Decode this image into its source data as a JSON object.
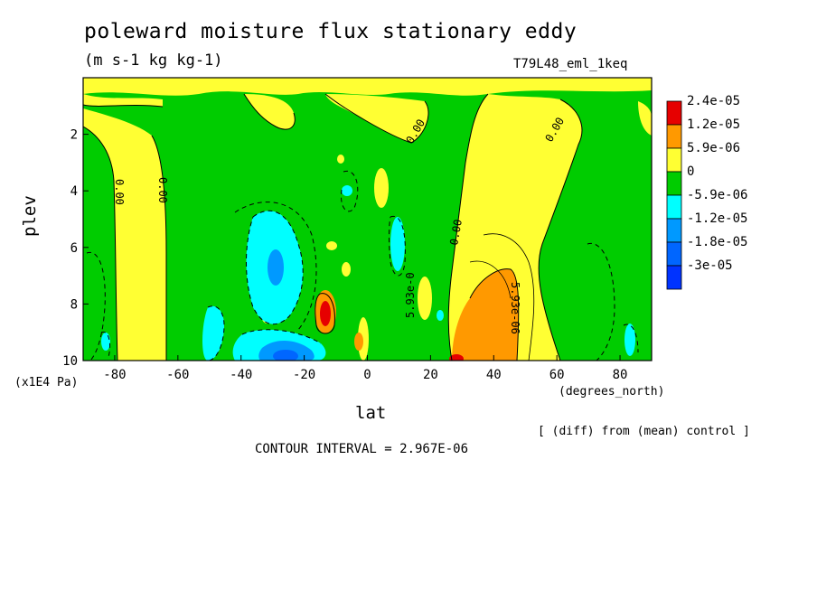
{
  "chart_data": {
    "type": "heatmap",
    "title": "poleward moisture flux stationary eddy",
    "units": "(m s-1 kg kg-1)",
    "experiment": "T79L48_eml_1keq",
    "xlabel": "lat",
    "x_units": "(degrees_north)",
    "ylabel": "plev",
    "y_units": "(x1E4 Pa)",
    "xlim": [
      -90,
      90
    ],
    "ylim": [
      0,
      10
    ],
    "y_inverted": true,
    "x_ticks": [
      "-80",
      "-60",
      "-40",
      "-20",
      "0",
      "20",
      "40",
      "60",
      "80"
    ],
    "y_ticks": [
      "2",
      "4",
      "6",
      "8",
      "10"
    ],
    "legend": {
      "placement": "right",
      "levels": [
        "2.4e-05",
        "1.2e-05",
        "5.9e-06",
        "0",
        "-5.9e-06",
        "-1.2e-05",
        "-1.8e-05",
        "-3e-05"
      ],
      "colors": [
        "#e60000",
        "#ff9900",
        "#ffff33",
        "#00cc00",
        "#00ffff",
        "#0099ff",
        "#0066ff",
        "#0033ff"
      ]
    },
    "contour_labels": [
      "0.00",
      "0.00",
      "0.00",
      "0.00",
      "0.00",
      "5.93e-0",
      "5.93e-06"
    ],
    "note": "[ (diff) from (mean) control ]",
    "contour_interval": "CONTOUR INTERVAL = 2.967E-06"
  }
}
